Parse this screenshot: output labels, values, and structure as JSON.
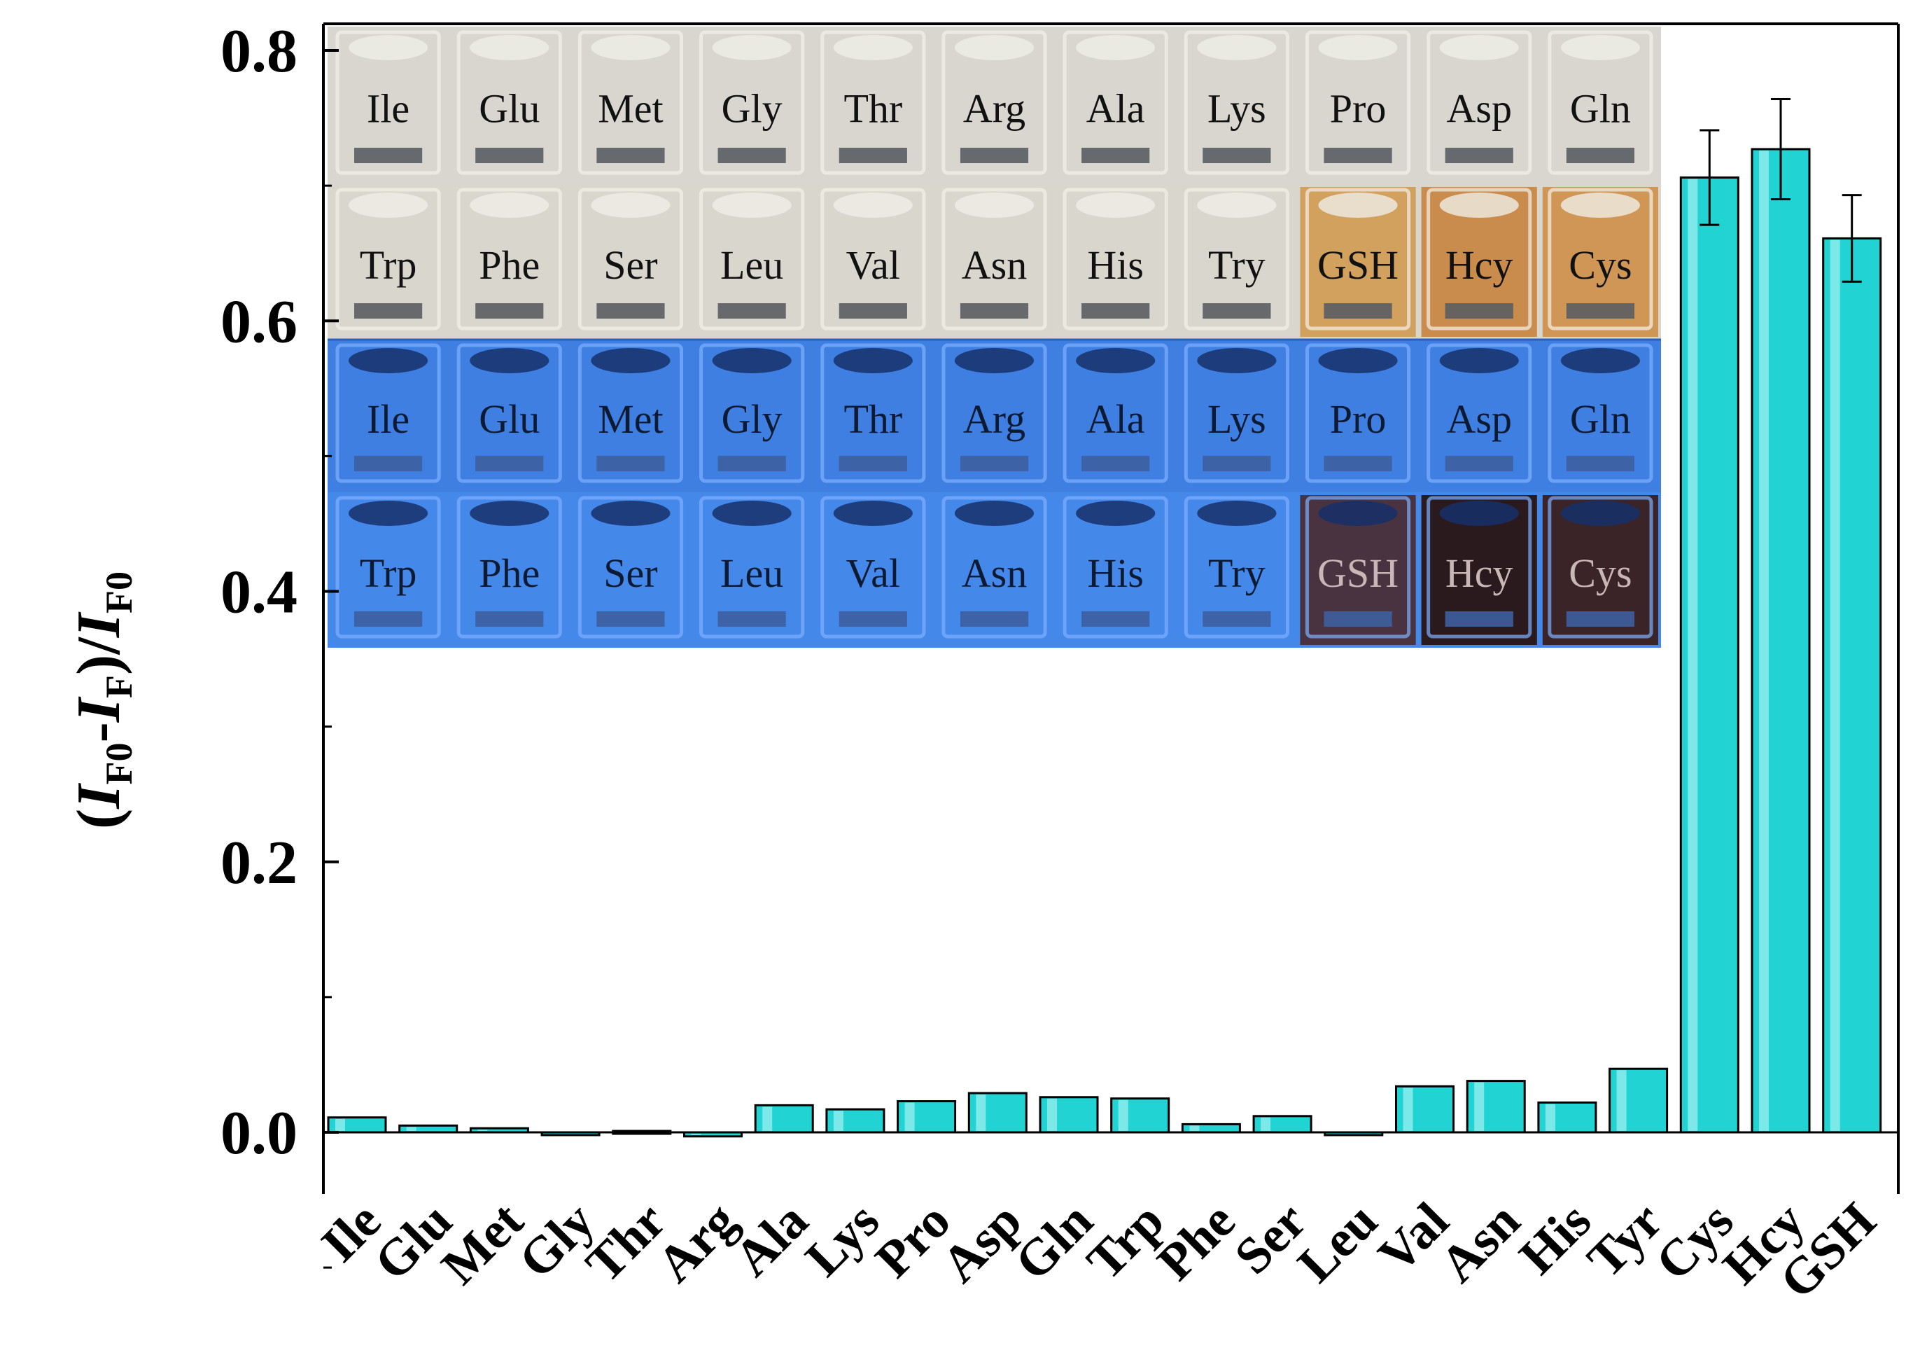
{
  "chart_data": {
    "type": "bar",
    "ylabel": {
      "open": "(",
      "I1": "I",
      "sub1": "F0",
      "dash": "-",
      "I2": "I",
      "sub2": "F",
      "close": ")/",
      "I3": "I",
      "sub3": "F0"
    },
    "ylim": [
      0,
      0.8
    ],
    "yticks": [
      "0.0",
      "0.2",
      "0.4",
      "0.6",
      "0.8"
    ],
    "ytick_values": [
      0.0,
      0.2,
      0.4,
      0.6,
      0.8
    ],
    "categories": [
      "Ile",
      "Glu",
      "Met",
      "Gly",
      "Thr",
      "Arg",
      "Ala",
      "Lys",
      "Pro",
      "Asp",
      "Gln",
      "Trp",
      "Phe",
      "Ser",
      "Leu",
      "Val",
      "Asn",
      "His",
      "Tyr",
      "Cys",
      "Hcy",
      "GSH"
    ],
    "values": [
      0.011,
      0.005,
      0.003,
      -0.002,
      0.001,
      -0.003,
      0.02,
      0.017,
      0.023,
      0.029,
      0.026,
      0.025,
      0.006,
      0.012,
      -0.002,
      0.034,
      0.038,
      0.022,
      0.047,
      0.706,
      0.727,
      0.661
    ],
    "errors": [
      0.001,
      0.001,
      0.001,
      0.001,
      0.001,
      0.001,
      0.001,
      0.001,
      0.001,
      0.001,
      0.001,
      0.001,
      0.001,
      0.001,
      0.001,
      0.001,
      0.001,
      0.001,
      0.002,
      0.035,
      0.037,
      0.032
    ],
    "grid": false,
    "bar_color": "#22d3d3",
    "bar_edge": "#000000"
  },
  "inset": {
    "rows": [
      {
        "bg": "#d8d6cf",
        "labels": [
          "Ile",
          "Glu",
          "Met",
          "Gly",
          "Thr",
          "Arg",
          "Ala",
          "Lys",
          "Pro",
          "Asp",
          "Gln"
        ],
        "tints": [
          "",
          "",
          "",
          "",
          "",
          "",
          "",
          "",
          "",
          "",
          ""
        ],
        "text_color": "#111111"
      },
      {
        "bg": "#d9d6cd",
        "labels": [
          "Trp",
          "Phe",
          "Ser",
          "Leu",
          "Val",
          "Asn",
          "His",
          "Try",
          "GSH",
          "Hcy",
          "Cys"
        ],
        "tints": [
          "",
          "",
          "",
          "",
          "",
          "",
          "",
          "",
          "#d2a15e",
          "#c98c4c",
          "#cf9655"
        ],
        "text_color": "#111111"
      },
      {
        "bg": "#3f7fe0",
        "labels": [
          "Ile",
          "Glu",
          "Met",
          "Gly",
          "Thr",
          "Arg",
          "Ala",
          "Lys",
          "Pro",
          "Asp",
          "Gln"
        ],
        "tints": [
          "",
          "",
          "",
          "",
          "",
          "",
          "",
          "",
          "",
          "",
          ""
        ],
        "text_color": "#0d1a33"
      },
      {
        "bg": "#4488ea",
        "labels": [
          "Trp",
          "Phe",
          "Ser",
          "Leu",
          "Val",
          "Asn",
          "His",
          "Try",
          "GSH",
          "Hcy",
          "Cys"
        ],
        "tints": [
          "",
          "",
          "",
          "",
          "",
          "",
          "",
          "",
          "#4a3340",
          "#2a1a1e",
          "#3a2428"
        ],
        "text_color": "#0d1a33"
      }
    ]
  }
}
